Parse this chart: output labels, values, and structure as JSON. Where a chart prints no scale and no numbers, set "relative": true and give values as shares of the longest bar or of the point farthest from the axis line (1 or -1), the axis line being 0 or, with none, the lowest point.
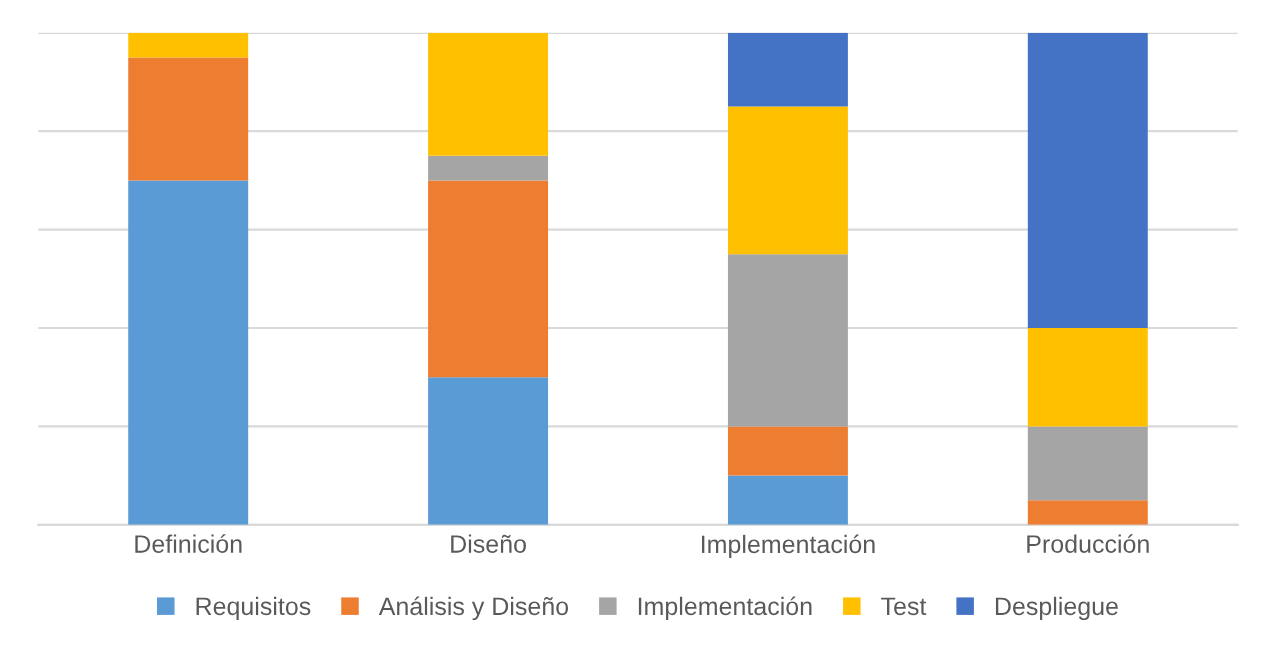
{
  "chart_data": {
    "type": "bar",
    "stacked": true,
    "relative": true,
    "grid": "y",
    "legend": "bottom",
    "categories": [
      "Definición",
      "Diseño",
      "Implementación",
      "Producción"
    ],
    "series": [
      {
        "name": "Requisitos",
        "color": "#5b9bd5",
        "values": [
          0.7,
          0.3,
          0.1,
          0
        ]
      },
      {
        "name": "Análisis y Diseño",
        "color": "#ed7d31",
        "values": [
          0.25,
          0.4,
          0.1,
          0.05
        ]
      },
      {
        "name": "Implementación",
        "color": "#a5a5a5",
        "values": [
          0,
          0.05,
          0.35,
          0.15
        ]
      },
      {
        "name": "Test",
        "color": "#ffc000",
        "values": [
          0.05,
          0.25,
          0.3,
          0.2
        ]
      },
      {
        "name": "Despliegue",
        "color": "#4472c4",
        "values": [
          0,
          0,
          0.15,
          0.6
        ]
      }
    ]
  }
}
